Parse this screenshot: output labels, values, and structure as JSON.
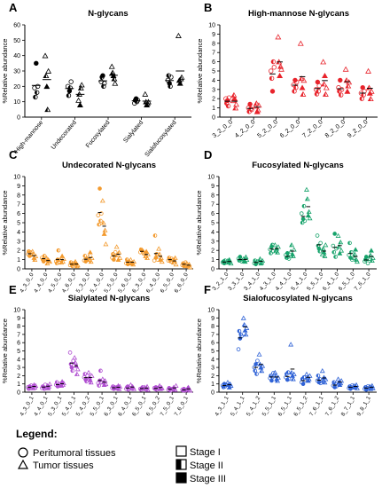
{
  "figure": {
    "legend": {
      "title": "Legend:",
      "items": [
        "Peritumoral tissues",
        "Tumor tissues",
        "Stage I",
        "Stage II",
        "Stage III"
      ]
    }
  },
  "chart_data": [
    {
      "panel": "A",
      "type": "scatter",
      "title": "N-glycans",
      "ylabel": "%Relative abundance",
      "ylim": [
        0,
        60
      ],
      "yticks": [
        0,
        10,
        20,
        30,
        40,
        50,
        60
      ],
      "xtick_rotation": 50,
      "color": "#000000",
      "categories": [
        "High-mannose",
        "Undecorated",
        "Fucosylated",
        "Sialylated",
        "Sialofucosylated"
      ],
      "peritumoral": [
        [
          19,
          13,
          35,
          16,
          20
        ],
        [
          20,
          14,
          17,
          19,
          23
        ],
        [
          23,
          26,
          27,
          20,
          22
        ],
        [
          9,
          11,
          12,
          10,
          11
        ],
        [
          24,
          27,
          22,
          20,
          26
        ]
      ],
      "tumor": [
        [
          40,
          27,
          20,
          5,
          30
        ],
        [
          11,
          15,
          8,
          19,
          21
        ],
        [
          33,
          29,
          27,
          25,
          22
        ],
        [
          15,
          10,
          8,
          9,
          10
        ],
        [
          53,
          24,
          22,
          25,
          26
        ]
      ]
    },
    {
      "panel": "B",
      "type": "scatter",
      "title": "High-mannose N-glycans",
      "ylabel": "%Relative abundance",
      "ylim": [
        0,
        10
      ],
      "yticks": [
        0,
        1,
        2,
        3,
        4,
        5,
        6,
        7,
        8,
        9,
        10
      ],
      "xtick_rotation": 40,
      "color": "#e8232b",
      "categories": [
        "3_2_0_0",
        "4_2_0_0",
        "5_2_0_0",
        "6_2_0_0",
        "7_2_0_0",
        "8_2_0_0",
        "9_2_0_0"
      ],
      "peritumoral": [
        [
          2.0,
          1.5,
          1.8,
          1.2,
          2.1
        ],
        [
          1.0,
          0.6,
          1.4,
          0.9,
          0.8
        ],
        [
          5.0,
          4.2,
          2.8,
          6.0,
          5.4
        ],
        [
          3.5,
          2.8,
          4.0,
          3.2,
          3.8
        ],
        [
          3.0,
          2.5,
          3.8,
          2.8,
          3.4
        ],
        [
          3.2,
          2.8,
          4.0,
          2.4,
          3.0
        ],
        [
          2.6,
          2.0,
          3.2,
          2.4,
          2.8
        ]
      ],
      "tumor": [
        [
          1.8,
          2.4,
          2.0,
          1.0,
          1.4
        ],
        [
          1.2,
          1.5,
          0.6,
          0.8,
          1.3
        ],
        [
          8.7,
          6.0,
          4.5,
          5.5,
          5.2
        ],
        [
          8.0,
          4.2,
          3.2,
          2.5,
          4.0
        ],
        [
          6.0,
          3.6,
          4.5,
          2.5,
          3.2
        ],
        [
          5.2,
          4.0,
          2.8,
          3.4,
          3.8
        ],
        [
          5.0,
          3.2,
          2.6,
          2.0,
          2.8
        ]
      ]
    },
    {
      "panel": "C",
      "type": "scatter",
      "title": "Undecorated N-glycans",
      "ylabel": "%Relative abundance",
      "ylim": [
        0,
        10
      ],
      "yticks": [
        0,
        1,
        2,
        3,
        4,
        5,
        6,
        7,
        8,
        9,
        10
      ],
      "xtick_rotation": 60,
      "color": "#f39a2e",
      "categories": [
        "4_3_0_0",
        "4_4_0_0",
        "4_5_0_0",
        "4_6_0_0",
        "5_3_0_0",
        "5_4_0_0",
        "5_5_0_0",
        "5_6_0_0",
        "6_3_0_0",
        "6_4_0_0",
        "6_5_0_0",
        "6_6_0_0"
      ],
      "peritumoral": [
        [
          1.6,
          1.9,
          1.4,
          1.8,
          1.5
        ],
        [
          1.2,
          1.0,
          0.8,
          1.4,
          1.1
        ],
        [
          0.8,
          0.6,
          1.0,
          2.0,
          0.7
        ],
        [
          0.4,
          0.7,
          0.5,
          0.3,
          0.6
        ],
        [
          0.9,
          1.4,
          0.8,
          1.1,
          1.0
        ],
        [
          5.8,
          4.8,
          8.7,
          5.2,
          6.0
        ],
        [
          1.2,
          1.6,
          1.0,
          1.4,
          1.8
        ],
        [
          0.6,
          1.0,
          0.5,
          0.8,
          0.7
        ],
        [
          1.8,
          2.1,
          2.0,
          1.9,
          1.7
        ],
        [
          0.9,
          3.6,
          1.2,
          1.6,
          1.0
        ],
        [
          0.9,
          1.2,
          1.0,
          0.8,
          1.1
        ],
        [
          0.4,
          0.6,
          0.3,
          0.5,
          0.7
        ]
      ],
      "tumor": [
        [
          1.9,
          1.6,
          1.2,
          1.0,
          1.4
        ],
        [
          1.2,
          0.6,
          1.0,
          0.9,
          0.8
        ],
        [
          1.0,
          0.7,
          1.4,
          0.8,
          1.1
        ],
        [
          0.5,
          0.8,
          0.6,
          0.3,
          0.4
        ],
        [
          1.3,
          1.0,
          1.8,
          0.8,
          1.2
        ],
        [
          7.4,
          5.0,
          3.8,
          4.2,
          2.7
        ],
        [
          2.4,
          1.5,
          1.0,
          1.8,
          1.2
        ],
        [
          1.0,
          0.6,
          0.7,
          0.5,
          0.8
        ],
        [
          1.7,
          1.4,
          1.9,
          1.2,
          1.6
        ],
        [
          2.2,
          1.6,
          1.0,
          1.2,
          0.8
        ],
        [
          1.0,
          0.7,
          0.9,
          1.2,
          0.5
        ],
        [
          0.6,
          0.3,
          0.4,
          0.5,
          0.2
        ]
      ]
    },
    {
      "panel": "D",
      "type": "scatter",
      "title": "Fucosylated N-glycans",
      "ylabel": "%Relative abundance",
      "ylim": [
        0,
        10
      ],
      "yticks": [
        0,
        1,
        2,
        3,
        4,
        5,
        6,
        7,
        8,
        9,
        10
      ],
      "xtick_rotation": 50,
      "color": "#17a36b",
      "categories": [
        "3_2_1_0",
        "3_3_1_0",
        "3_4_1_0",
        "4_3_1_0",
        "4_4_1_0",
        "5_4_1_0",
        "5_5_1_0",
        "6_4_1_0",
        "6_5_1_0",
        "7_6_1_0"
      ],
      "peritumoral": [
        [
          0.7,
          0.8,
          0.6,
          0.9,
          0.7
        ],
        [
          1.1,
          0.9,
          1.3,
          1.0,
          0.8
        ],
        [
          0.6,
          0.9,
          0.5,
          0.7,
          0.8
        ],
        [
          2.1,
          1.7,
          2.4,
          2.6,
          1.9
        ],
        [
          1.5,
          1.2,
          1.7,
          1.3,
          1.1
        ],
        [
          6.0,
          5.0,
          5.4,
          6.8,
          5.2
        ],
        [
          3.6,
          2.5,
          2.2,
          1.9,
          2.8
        ],
        [
          2.5,
          1.8,
          3.8,
          1.3,
          2.2
        ],
        [
          1.5,
          2.8,
          1.2,
          1.8,
          1.0
        ],
        [
          0.8,
          1.0,
          1.3,
          1.1,
          0.6
        ]
      ],
      "tumor": [
        [
          0.9,
          0.7,
          1.0,
          0.8,
          0.6
        ],
        [
          1.1,
          0.9,
          0.8,
          1.3,
          1.0
        ],
        [
          0.8,
          1.1,
          0.6,
          0.7,
          0.9
        ],
        [
          2.6,
          2.0,
          2.2,
          1.8,
          2.4
        ],
        [
          1.9,
          2.6,
          1.6,
          1.4,
          2.1
        ],
        [
          8.6,
          7.6,
          5.8,
          6.2,
          5.5
        ],
        [
          1.6,
          2.2,
          1.8,
          1.4,
          2.6
        ],
        [
          3.6,
          2.4,
          1.7,
          2.9,
          2.0
        ],
        [
          1.2,
          1.6,
          2.1,
          1.0,
          0.8
        ],
        [
          1.1,
          1.5,
          2.0,
          0.9,
          1.2
        ]
      ]
    },
    {
      "panel": "E",
      "type": "scatter",
      "title": "Sialylated N-glycans",
      "ylabel": "%Relative abundance",
      "ylim": [
        0,
        10
      ],
      "yticks": [
        0,
        1,
        2,
        3,
        4,
        5,
        6,
        7,
        8,
        9,
        10
      ],
      "xtick_rotation": 60,
      "color": "#b04fd1",
      "categories": [
        "4_3_0_1",
        "4_4_0_1",
        "5_3_0_1",
        "5_4_0_1",
        "5_4_0_2",
        "5_5_0_1",
        "6_3_0_1",
        "6_4_0_1",
        "6_5_0_1",
        "6_5_0_2",
        "7_5_0_1",
        "7_6_0_1"
      ],
      "peritumoral": [
        [
          0.6,
          0.4,
          0.7,
          0.5,
          0.8
        ],
        [
          0.5,
          0.7,
          0.6,
          0.4,
          0.9
        ],
        [
          0.9,
          1.2,
          0.7,
          0.8,
          1.0
        ],
        [
          4.8,
          3.4,
          3.0,
          2.6,
          3.8
        ],
        [
          1.8,
          2.2,
          1.5,
          1.3,
          2.0
        ],
        [
          1.1,
          0.8,
          1.4,
          2.6,
          1.2
        ],
        [
          0.5,
          0.7,
          0.4,
          0.6,
          0.5
        ],
        [
          0.4,
          0.6,
          0.7,
          0.3,
          0.5
        ],
        [
          0.4,
          0.3,
          0.5,
          0.6,
          0.4
        ],
        [
          0.5,
          0.4,
          0.6,
          0.3,
          0.5
        ],
        [
          0.3,
          0.5,
          0.4,
          0.2,
          0.4
        ],
        [
          0.3,
          0.2,
          0.4,
          0.3,
          0.2
        ]
      ],
      "tumor": [
        [
          0.7,
          0.5,
          0.9,
          0.6,
          0.8
        ],
        [
          0.6,
          0.8,
          0.5,
          0.7,
          1.0
        ],
        [
          1.0,
          0.8,
          1.3,
          0.9,
          1.1
        ],
        [
          4.2,
          3.6,
          3.2,
          2.2,
          2.8
        ],
        [
          2.4,
          1.8,
          1.5,
          1.2,
          2.0
        ],
        [
          1.6,
          1.2,
          0.9,
          1.4,
          1.0
        ],
        [
          0.6,
          0.5,
          0.8,
          0.4,
          0.7
        ],
        [
          0.9,
          0.5,
          0.7,
          0.6,
          0.4
        ],
        [
          0.6,
          0.4,
          0.5,
          0.7,
          0.3
        ],
        [
          0.5,
          0.8,
          0.4,
          0.6,
          0.5
        ],
        [
          0.4,
          0.6,
          0.5,
          0.3,
          0.8
        ],
        [
          0.3,
          0.5,
          0.6,
          0.4,
          0.2
        ]
      ]
    },
    {
      "panel": "F",
      "type": "scatter",
      "title": "Sialofucosylated N-glycans",
      "ylabel": "%Relative abundance",
      "ylim": [
        0,
        10
      ],
      "yticks": [
        0,
        1,
        2,
        3,
        4,
        5,
        6,
        7,
        8,
        9,
        10
      ],
      "xtick_rotation": 60,
      "color": "#2f62d6",
      "categories": [
        "4_3_1_1",
        "5_4_1_1",
        "5_4_1_2",
        "5_5_1_1",
        "6_5_1_1",
        "6_5_1_2",
        "7_6_1_1",
        "7_6_1_2",
        "8_7_1_1",
        "9_8_1_1"
      ],
      "peritumoral": [
        [
          0.8,
          0.6,
          1.0,
          0.7,
          0.9
        ],
        [
          5.2,
          7.4,
          6.5,
          7.0,
          6.8
        ],
        [
          3.0,
          2.6,
          3.4,
          2.2,
          3.8
        ],
        [
          1.7,
          2.0,
          1.4,
          1.8,
          2.3
        ],
        [
          1.8,
          2.2,
          1.5,
          2.4,
          1.6
        ],
        [
          1.2,
          1.6,
          1.0,
          1.8,
          1.4
        ],
        [
          1.4,
          2.0,
          1.2,
          1.6,
          1.1
        ],
        [
          0.8,
          1.2,
          0.6,
          1.0,
          0.7
        ],
        [
          0.5,
          0.7,
          0.4,
          0.6,
          0.8
        ],
        [
          0.4,
          0.6,
          0.3,
          0.5,
          0.7
        ]
      ],
      "tumor": [
        [
          1.2,
          0.9,
          0.6,
          1.0,
          0.8
        ],
        [
          9.0,
          8.2,
          7.5,
          7.0,
          7.8
        ],
        [
          4.6,
          3.4,
          3.0,
          2.6,
          3.2
        ],
        [
          2.4,
          2.0,
          1.6,
          1.4,
          1.8
        ],
        [
          5.8,
          2.4,
          2.0,
          1.6,
          2.2
        ],
        [
          2.2,
          1.8,
          1.4,
          1.6,
          2.0
        ],
        [
          2.6,
          1.4,
          1.8,
          1.2,
          1.6
        ],
        [
          1.6,
          1.2,
          0.9,
          1.1,
          1.4
        ],
        [
          0.8,
          0.6,
          0.7,
          0.9,
          0.5
        ],
        [
          0.7,
          0.4,
          0.6,
          0.8,
          0.5
        ]
      ]
    }
  ]
}
